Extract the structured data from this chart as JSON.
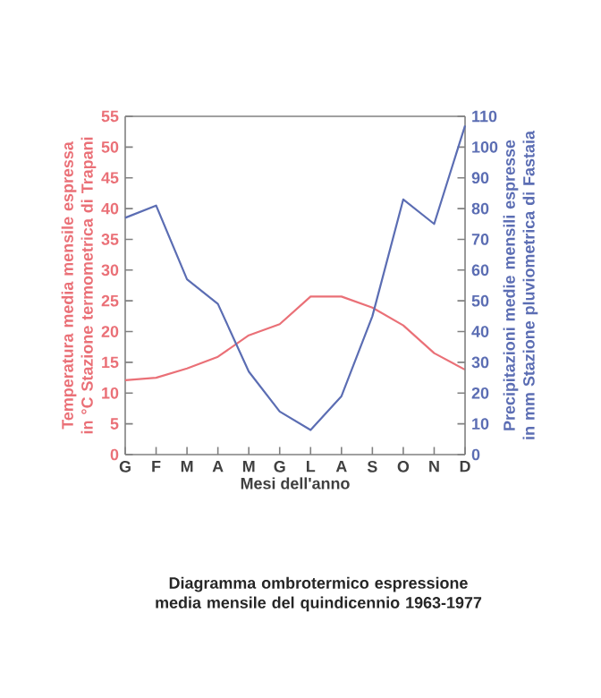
{
  "chart_data": {
    "type": "line",
    "title": "Diagramma ombrotermico espressione media mensile del quindicennio 1963-1977",
    "xlabel": "Mesi dell'anno",
    "ylabel": "Temperatura media mensile espressa in °C Stazione termometrica di Trapani",
    "y2label": "Precipitazioni medie mensili espresse in mm Stazione pluviometrica di Fastaia",
    "categories": [
      "G",
      "F",
      "M",
      "A",
      "M",
      "G",
      "L",
      "A",
      "S",
      "O",
      "N",
      "D"
    ],
    "ylim": [
      0,
      55
    ],
    "yticks": [
      0,
      5,
      10,
      15,
      20,
      25,
      30,
      35,
      40,
      45,
      50,
      55
    ],
    "y2lim": [
      0,
      110
    ],
    "y2ticks": [
      0,
      10,
      20,
      30,
      40,
      50,
      60,
      70,
      80,
      90,
      100,
      110
    ],
    "series": [
      {
        "color": "#ea7077",
        "values": [
          12.1,
          12.5,
          14,
          15.9,
          19.4,
          21.2,
          25.7,
          25.7,
          23.9,
          21,
          16.5,
          13.8
        ]
      },
      {
        "color": "#5b6db3",
        "axis": "y2",
        "values": [
          77,
          81,
          57,
          49,
          27,
          14,
          8,
          19,
          45,
          83,
          75,
          107
        ]
      }
    ]
  }
}
